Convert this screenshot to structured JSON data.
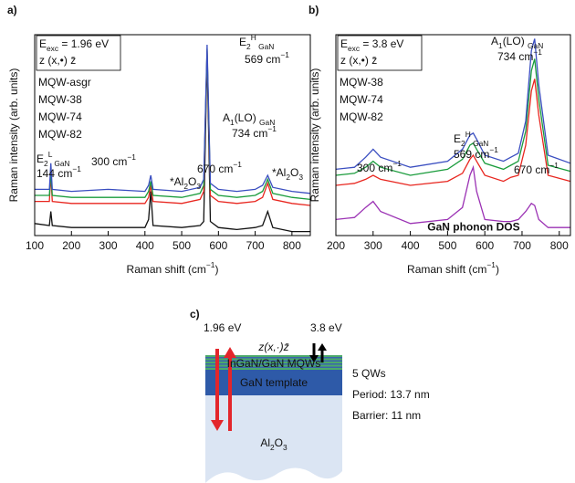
{
  "chart_data": [
    {
      "type": "line",
      "panel_label": "a)",
      "y_label": "Raman intensity (arb. units)",
      "x_label": [
        {
          "t": "Raman shift (cm"
        },
        {
          "t": "−1",
          "s": "super"
        },
        {
          "t": ")"
        }
      ],
      "xlim": [
        100,
        850
      ],
      "xticks": [
        100,
        200,
        300,
        400,
        500,
        600,
        700,
        800
      ],
      "ylim": [
        0,
        1
      ],
      "legend_notes": [
        [
          {
            "t": "E"
          },
          {
            "t": "exc",
            "s": "sub"
          },
          {
            "t": " = 1.96 eV"
          }
        ],
        "z (x,•)  z̄"
      ],
      "x": [
        100,
        140,
        144,
        148,
        200,
        300,
        400,
        410,
        416,
        422,
        500,
        550,
        560,
        569,
        578,
        600,
        650,
        700,
        720,
        734,
        748,
        800,
        850
      ],
      "series": [
        {
          "name": "MQW-asgr",
          "color": "#111111",
          "values": [
            0.06,
            0.05,
            0.12,
            0.05,
            0.04,
            0.04,
            0.04,
            0.08,
            0.22,
            0.05,
            0.04,
            0.05,
            0.07,
            0.9,
            0.07,
            0.04,
            0.03,
            0.04,
            0.05,
            0.12,
            0.04,
            0.02,
            0.02
          ]
        },
        {
          "name": "MQW-38",
          "color": "#e8261f",
          "values": [
            0.17,
            0.17,
            0.3,
            0.17,
            0.16,
            0.16,
            0.16,
            0.19,
            0.25,
            0.17,
            0.16,
            0.18,
            0.22,
            0.92,
            0.2,
            0.17,
            0.16,
            0.17,
            0.19,
            0.26,
            0.18,
            0.16,
            0.15
          ]
        },
        {
          "name": "MQW-74",
          "color": "#1a9c3c",
          "values": [
            0.2,
            0.2,
            0.32,
            0.2,
            0.19,
            0.19,
            0.19,
            0.22,
            0.27,
            0.2,
            0.19,
            0.21,
            0.25,
            0.93,
            0.23,
            0.2,
            0.19,
            0.2,
            0.22,
            0.28,
            0.21,
            0.19,
            0.18
          ]
        },
        {
          "name": "MQW-82",
          "color": "#3a4ec0",
          "values": [
            0.23,
            0.23,
            0.36,
            0.23,
            0.22,
            0.23,
            0.22,
            0.25,
            0.3,
            0.23,
            0.22,
            0.24,
            0.28,
            0.95,
            0.26,
            0.23,
            0.22,
            0.23,
            0.25,
            0.3,
            0.24,
            0.22,
            0.21
          ]
        }
      ],
      "annotations": [
        {
          "text": [
            {
              "t": "E"
            },
            {
              "t": "2",
              "s": "sub"
            },
            {
              "t": "L",
              "s": "super"
            },
            {
              "t": " GaN",
              "s": "sub"
            }
          ]
        },
        {
          "text": [
            {
              "t": "144 cm"
            },
            {
              "t": "−1",
              "s": "super"
            }
          ]
        },
        {
          "text": [
            {
              "t": "300 cm"
            },
            {
              "t": "−1",
              "s": "super"
            }
          ]
        },
        {
          "text": [
            {
              "t": "*Al"
            },
            {
              "t": "2",
              "s": "sub"
            },
            {
              "t": "O"
            },
            {
              "t": "3",
              "s": "sub"
            }
          ],
          "color": "#9b32b4"
        },
        {
          "text": [
            {
              "t": "E"
            },
            {
              "t": "2",
              "s": "sub"
            },
            {
              "t": "H",
              "s": "super"
            },
            {
              "t": " GaN",
              "s": "sub"
            }
          ]
        },
        {
          "text": [
            {
              "t": "569 cm"
            },
            {
              "t": "−1",
              "s": "super"
            }
          ]
        },
        {
          "text": [
            {
              "t": "670 cm"
            },
            {
              "t": "−1",
              "s": "super"
            }
          ]
        },
        {
          "text": [
            {
              "t": "A"
            },
            {
              "t": "1",
              "s": "sub"
            },
            {
              "t": "(LO) "
            },
            {
              "t": "GaN",
              "s": "sub"
            }
          ]
        },
        {
          "text": [
            {
              "t": "734 cm"
            },
            {
              "t": "−1",
              "s": "super"
            }
          ]
        },
        {
          "text": [
            {
              "t": "*Al"
            },
            {
              "t": "2",
              "s": "sub"
            },
            {
              "t": "O"
            },
            {
              "t": "3",
              "s": "sub"
            }
          ],
          "color": "#9b32b4"
        }
      ]
    },
    {
      "type": "line",
      "panel_label": "b)",
      "y_label": "Raman intensity (arb. units)",
      "x_label": [
        {
          "t": "Raman shift (cm"
        },
        {
          "t": "−1",
          "s": "super"
        },
        {
          "t": ")"
        }
      ],
      "xlim": [
        200,
        830
      ],
      "xticks": [
        200,
        300,
        400,
        500,
        600,
        700,
        800
      ],
      "ylim": [
        0,
        1
      ],
      "legend_notes": [
        [
          {
            "t": "E"
          },
          {
            "t": "exc",
            "s": "sub"
          },
          {
            "t": " = 3.8 eV"
          }
        ],
        "z (x,•)  z̄"
      ],
      "x": [
        200,
        250,
        280,
        300,
        320,
        400,
        500,
        540,
        560,
        569,
        578,
        600,
        650,
        670,
        690,
        710,
        725,
        734,
        745,
        770,
        830
      ],
      "series": [
        {
          "name": "MQW-38",
          "color": "#e8261f",
          "values": [
            0.25,
            0.26,
            0.28,
            0.3,
            0.28,
            0.25,
            0.27,
            0.31,
            0.38,
            0.4,
            0.37,
            0.3,
            0.27,
            0.29,
            0.3,
            0.45,
            0.72,
            0.78,
            0.6,
            0.3,
            0.27
          ]
        },
        {
          "name": "MQW-74",
          "color": "#1a9c3c",
          "values": [
            0.3,
            0.31,
            0.34,
            0.37,
            0.34,
            0.3,
            0.33,
            0.38,
            0.45,
            0.46,
            0.43,
            0.36,
            0.33,
            0.35,
            0.37,
            0.52,
            0.82,
            0.88,
            0.68,
            0.35,
            0.32
          ]
        },
        {
          "name": "MQW-82",
          "color": "#3a4ec0",
          "values": [
            0.33,
            0.34,
            0.39,
            0.43,
            0.39,
            0.34,
            0.37,
            0.43,
            0.5,
            0.51,
            0.48,
            0.4,
            0.37,
            0.39,
            0.41,
            0.57,
            0.92,
            0.98,
            0.75,
            0.4,
            0.36
          ]
        },
        {
          "name": "GaN phonon DOS",
          "color": "#9b32b4",
          "inline_label": true,
          "values": [
            0.08,
            0.09,
            0.14,
            0.17,
            0.12,
            0.06,
            0.08,
            0.14,
            0.3,
            0.34,
            0.22,
            0.08,
            0.07,
            0.07,
            0.08,
            0.12,
            0.16,
            0.15,
            0.08,
            0.04,
            0.04
          ]
        }
      ],
      "annotations": [
        {
          "text": [
            {
              "t": "300 cm"
            },
            {
              "t": "−1",
              "s": "super"
            }
          ]
        },
        {
          "text": [
            {
              "t": "E"
            },
            {
              "t": "2",
              "s": "sub"
            },
            {
              "t": "H",
              "s": "super"
            },
            {
              "t": " GaN",
              "s": "sub"
            }
          ]
        },
        {
          "text": [
            {
              "t": "569 cm"
            },
            {
              "t": "−1",
              "s": "super"
            }
          ]
        },
        {
          "text": [
            {
              "t": "670 cm"
            },
            {
              "t": "−1",
              "s": "super"
            }
          ]
        },
        {
          "text": [
            {
              "t": "A"
            },
            {
              "t": "1",
              "s": "sub"
            },
            {
              "t": "(LO) "
            },
            {
              "t": "GaN",
              "s": "sub"
            }
          ]
        },
        {
          "text": [
            {
              "t": "734 cm"
            },
            {
              "t": "−1",
              "s": "super"
            }
          ]
        }
      ]
    }
  ],
  "diagram": {
    "panel_label": "c)",
    "excitation_red": "1.96 eV",
    "excitation_black": "3.8 eV",
    "geometry": "z(x,·)z̄",
    "mqw": "InGaN/GaN MQWs",
    "template": "GaN template",
    "substrate": [
      {
        "t": "Al"
      },
      {
        "t": "2",
        "s": "sub"
      },
      {
        "t": "O"
      },
      {
        "t": "3",
        "s": "sub"
      }
    ],
    "specs": [
      "5 QWs",
      "Period: 13.7 nm",
      "Barrier: 11 nm"
    ]
  }
}
